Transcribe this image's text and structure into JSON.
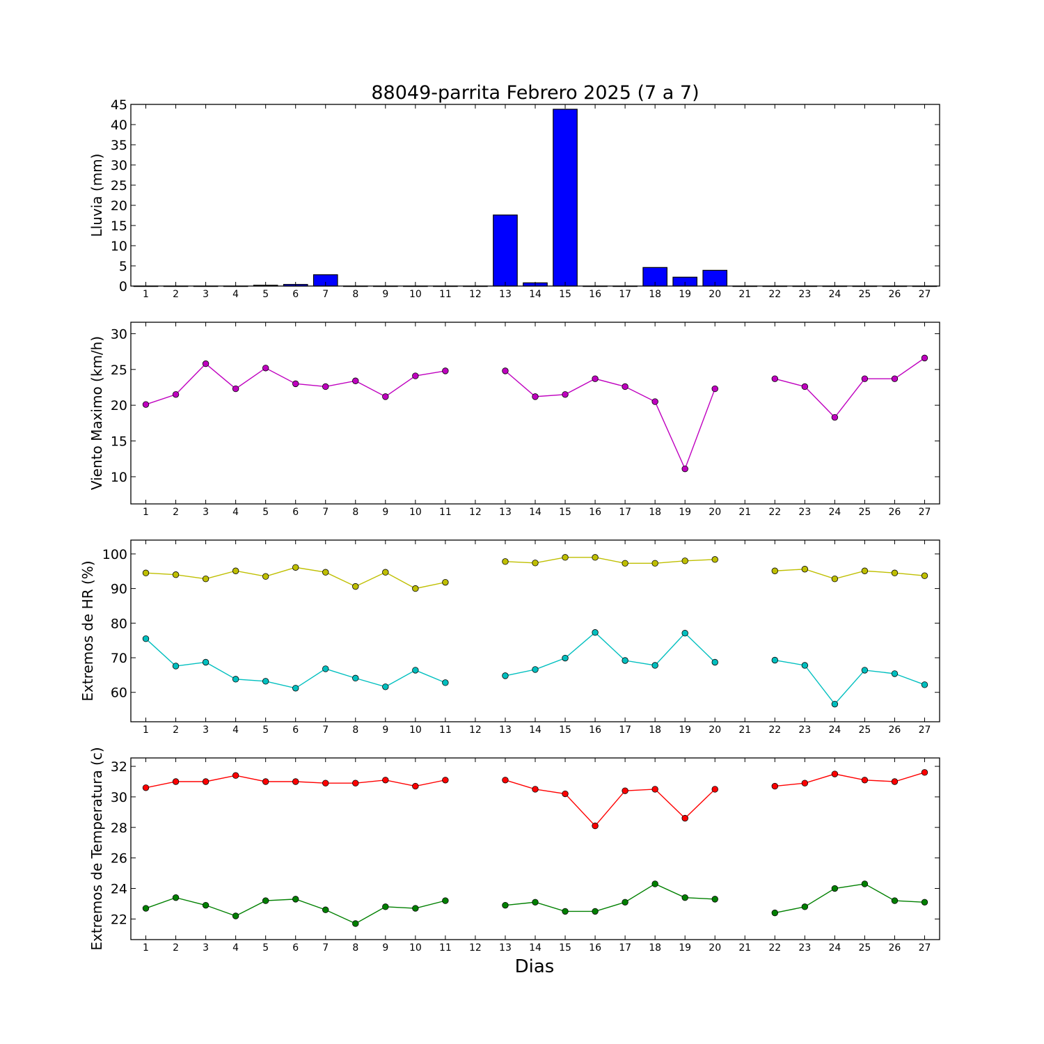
{
  "figure": {
    "title": "88049-parrita Febrero 2025  (7 a 7)",
    "xlabel": "Dias"
  },
  "chart_data": [
    {
      "type": "bar",
      "title": "88049-parrita Febrero 2025  (7 a 7)",
      "ylabel": "Lluvia (mm)",
      "xlabel": "",
      "categories": [
        1,
        2,
        3,
        4,
        5,
        6,
        7,
        8,
        9,
        10,
        11,
        12,
        13,
        14,
        15,
        16,
        17,
        18,
        19,
        20,
        21,
        22,
        23,
        24,
        25,
        26,
        27
      ],
      "values": [
        0,
        0,
        0,
        0,
        0.2,
        0.4,
        2.8,
        0,
        0,
        0,
        0,
        0,
        17.6,
        0.8,
        43.8,
        0,
        0,
        4.6,
        2.2,
        3.9,
        0,
        0,
        0,
        0,
        0,
        0,
        0
      ],
      "ylim": [
        0,
        45
      ],
      "yticks": [
        0,
        5,
        10,
        15,
        20,
        25,
        30,
        35,
        40,
        45
      ],
      "colors": {
        "bar": "#0000ff"
      },
      "grid": false
    },
    {
      "type": "line",
      "ylabel": "Viento Maximo (km/h)",
      "xlabel": "",
      "x": [
        1,
        2,
        3,
        4,
        5,
        6,
        7,
        8,
        9,
        10,
        11,
        12,
        13,
        14,
        15,
        16,
        17,
        18,
        19,
        20,
        21,
        22,
        23,
        24,
        25,
        26,
        27
      ],
      "series": [
        {
          "values": [
            20.1,
            21.5,
            25.8,
            22.3,
            25.2,
            23.0,
            22.6,
            23.4,
            21.2,
            24.1,
            24.8,
            null,
            24.8,
            21.2,
            21.5,
            23.7,
            22.6,
            20.5,
            11.1,
            22.3,
            null,
            23.7,
            22.6,
            18.3,
            23.7,
            23.7,
            26.6
          ],
          "color": "#bf00bf"
        }
      ],
      "ylim": [
        6.2,
        31.6
      ],
      "yticks": [
        10,
        15,
        20,
        25,
        30
      ],
      "grid": false
    },
    {
      "type": "line",
      "ylabel": "Extremos de HR (%)",
      "xlabel": "",
      "x": [
        1,
        2,
        3,
        4,
        5,
        6,
        7,
        8,
        9,
        10,
        11,
        12,
        13,
        14,
        15,
        16,
        17,
        18,
        19,
        20,
        21,
        22,
        23,
        24,
        25,
        26,
        27
      ],
      "series": [
        {
          "values": [
            94.5,
            94,
            92.8,
            95.1,
            93.5,
            96.1,
            94.7,
            90.6,
            94.7,
            90.0,
            91.8,
            null,
            97.8,
            97.4,
            99,
            99,
            97.3,
            97.3,
            98,
            98.4,
            null,
            95.1,
            95.6,
            92.8,
            95.1,
            94.5,
            93.7
          ],
          "color": "#bfbf00"
        },
        {
          "values": [
            75.5,
            67.6,
            68.7,
            63.8,
            63.2,
            61.2,
            66.8,
            64.1,
            61.6,
            66.4,
            62.8,
            null,
            64.8,
            66.6,
            69.9,
            77.3,
            69.2,
            67.8,
            77.1,
            68.7,
            null,
            69.3,
            67.8,
            56.6,
            66.4,
            65.4,
            62.2
          ],
          "color": "#00bfbf"
        }
      ],
      "ylim": [
        51.5,
        104
      ],
      "yticks": [
        60,
        70,
        80,
        90,
        100
      ],
      "grid": false
    },
    {
      "type": "line",
      "ylabel": "Extremos de Temperatura (c)",
      "xlabel": "Dias",
      "x": [
        1,
        2,
        3,
        4,
        5,
        6,
        7,
        8,
        9,
        10,
        11,
        12,
        13,
        14,
        15,
        16,
        17,
        18,
        19,
        20,
        21,
        22,
        23,
        24,
        25,
        26,
        27
      ],
      "series": [
        {
          "values": [
            30.6,
            31.0,
            31.0,
            31.4,
            31.0,
            31.0,
            30.9,
            30.9,
            31.1,
            30.7,
            31.1,
            null,
            31.1,
            30.5,
            30.2,
            28.1,
            30.4,
            30.5,
            28.6,
            30.5,
            null,
            30.7,
            30.9,
            31.5,
            31.1,
            31.0,
            31.6
          ],
          "color": "#ff0000"
        },
        {
          "values": [
            22.7,
            23.4,
            22.9,
            22.2,
            23.2,
            23.3,
            22.6,
            21.7,
            22.8,
            22.7,
            23.2,
            null,
            22.9,
            23.1,
            22.5,
            22.5,
            23.1,
            24.3,
            23.4,
            23.3,
            null,
            22.4,
            22.8,
            24.0,
            24.3,
            23.2,
            23.1
          ],
          "color": "#008000"
        }
      ],
      "ylim": [
        20.65,
        32.55
      ],
      "yticks": [
        22,
        24,
        26,
        28,
        30,
        32
      ],
      "grid": false
    }
  ]
}
